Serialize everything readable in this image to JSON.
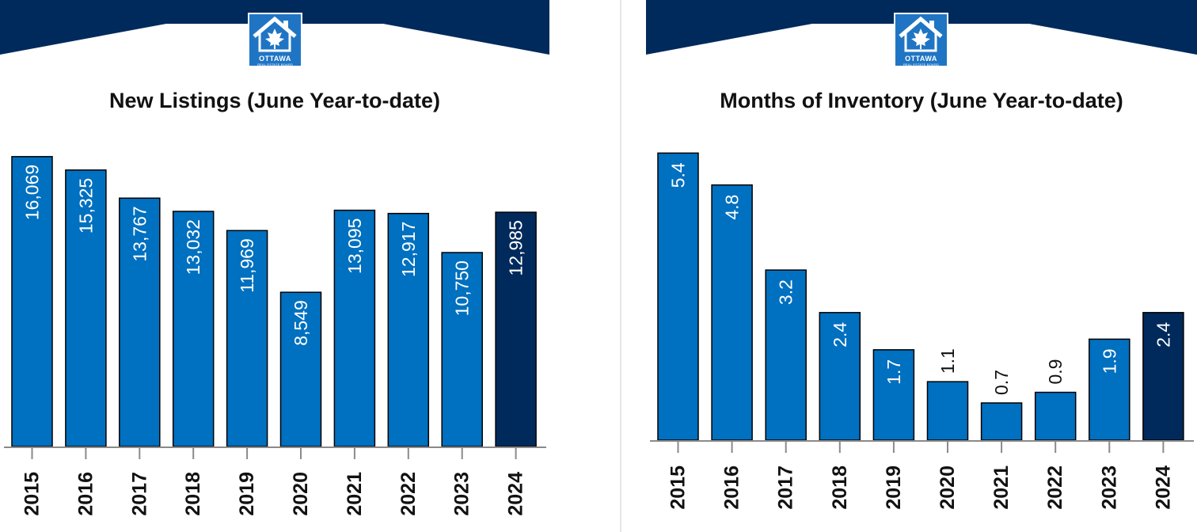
{
  "colors": {
    "banner": "#002a5c",
    "bar": "#0070c0",
    "bar_highlight": "#002a5c",
    "bar_outline": "#000000",
    "logo_bg": "#1f75c4"
  },
  "logo": {
    "icon": "house-maple-leaf-icon",
    "word": "OTTAWA",
    "sub": "REAL ESTATE BOARD"
  },
  "chart_data": [
    {
      "type": "bar",
      "title": "New Listings (June Year-to-date)",
      "categories": [
        "2015",
        "2016",
        "2017",
        "2018",
        "2019",
        "2020",
        "2021",
        "2022",
        "2023",
        "2024"
      ],
      "values": [
        16069,
        15325,
        13767,
        13032,
        11969,
        8549,
        13095,
        12917,
        10750,
        12985
      ],
      "value_labels": [
        "16,069",
        "15,325",
        "13,767",
        "13,032",
        "11,969",
        "8,549",
        "13,095",
        "12,917",
        "10,750",
        "12,985"
      ],
      "highlight_category": "2024",
      "xlabel": "",
      "ylabel": "",
      "ylim": [
        0,
        16500
      ],
      "grid": false,
      "legend": "none"
    },
    {
      "type": "bar",
      "title": "Months of Inventory   (June Year-to-date)",
      "categories": [
        "2015",
        "2016",
        "2017",
        "2018",
        "2019",
        "2020",
        "2021",
        "2022",
        "2023",
        "2024"
      ],
      "values": [
        5.4,
        4.8,
        3.2,
        2.4,
        1.7,
        1.1,
        0.7,
        0.9,
        1.9,
        2.4
      ],
      "value_labels": [
        "5.4",
        "4.8",
        "3.2",
        "2.4",
        "1.7",
        "1.1",
        "0.7",
        "0.9",
        "1.9",
        "2.4"
      ],
      "highlight_category": "2024",
      "xlabel": "",
      "ylabel": "",
      "ylim": [
        0,
        5.45
      ],
      "grid": false,
      "legend": "none"
    }
  ]
}
